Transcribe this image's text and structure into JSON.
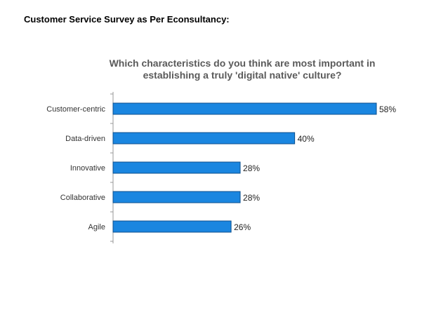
{
  "slide_title": "Customer Service Survey as Per Econsultancy:",
  "chart_data": {
    "type": "bar",
    "orientation": "horizontal",
    "title_line1": "Which characteristics do you think are most important in",
    "title_line2": "establishing a truly 'digital native' culture?",
    "categories": [
      "Customer-centric",
      "Data-driven",
      "Innovative",
      "Collaborative",
      "Agile"
    ],
    "values": [
      58,
      40,
      28,
      28,
      26
    ],
    "value_labels": [
      "58%",
      "40%",
      "28%",
      "28%",
      "26%"
    ],
    "unit": "%",
    "xlim": [
      0,
      58
    ],
    "bar_color": "#1a86e0",
    "bar_edge_color": "#0d4f8c"
  }
}
